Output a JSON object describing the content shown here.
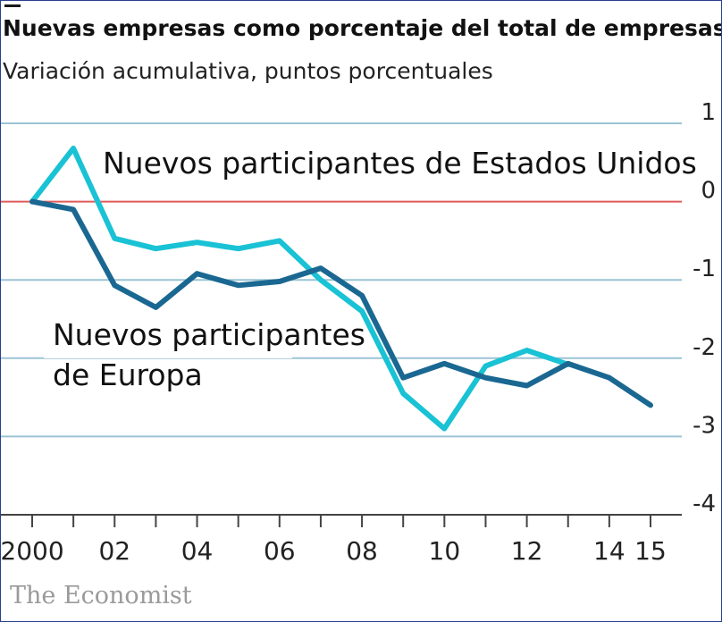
{
  "header": {
    "title": "Nuevas empresas como porcentaje del total de empresas*",
    "subtitle": "Variación acumulativa, puntos porcentuales"
  },
  "source": "The Economist",
  "colors": {
    "us": "#19c2d4",
    "europe": "#1a6892",
    "zero_line": "#e05a5a",
    "grid": "#9bc3d4",
    "axis": "#444444"
  },
  "chart_data": {
    "type": "line",
    "title": "Nuevas empresas como porcentaje del total de empresas*",
    "subtitle": "Variación acumulativa, puntos porcentuales",
    "x": [
      2000,
      2001,
      2002,
      2003,
      2004,
      2005,
      2006,
      2007,
      2008,
      2009,
      2010,
      2011,
      2012,
      2013,
      2014,
      2015
    ],
    "xlim": [
      2000,
      2015
    ],
    "x_ticks": [
      {
        "value": 2000,
        "label": "2000"
      },
      {
        "value": 2002,
        "label": "02"
      },
      {
        "value": 2004,
        "label": "04"
      },
      {
        "value": 2006,
        "label": "06"
      },
      {
        "value": 2008,
        "label": "08"
      },
      {
        "value": 2010,
        "label": "10"
      },
      {
        "value": 2012,
        "label": "12"
      },
      {
        "value": 2014,
        "label": "14"
      },
      {
        "value": 2015,
        "label": "15"
      }
    ],
    "ylim": [
      -4,
      1
    ],
    "y_ticks": [
      {
        "value": 1,
        "label": "1"
      },
      {
        "value": 0,
        "label": "0"
      },
      {
        "value": -1,
        "label": "-1"
      },
      {
        "value": -2,
        "label": "-2"
      },
      {
        "value": -3,
        "label": "-3"
      },
      {
        "value": -4,
        "label": "-4"
      }
    ],
    "grid": true,
    "series": [
      {
        "key": "us",
        "annotation": [
          "Nuevos participantes de Estados Unidos"
        ],
        "values": [
          0.0,
          0.68,
          -0.47,
          -0.6,
          -0.52,
          -0.6,
          -0.5,
          -1.0,
          -1.4,
          -2.45,
          -2.9,
          -2.1,
          -1.9,
          -2.08,
          null,
          null
        ]
      },
      {
        "key": "europe",
        "annotation": [
          "Nuevos participantes",
          "de Europa"
        ],
        "values": [
          0.0,
          -0.1,
          -1.07,
          -1.35,
          -0.92,
          -1.07,
          -1.02,
          -0.85,
          -1.2,
          -2.25,
          -2.07,
          -2.25,
          -2.35,
          -2.07,
          -2.25,
          -2.6
        ]
      }
    ]
  }
}
